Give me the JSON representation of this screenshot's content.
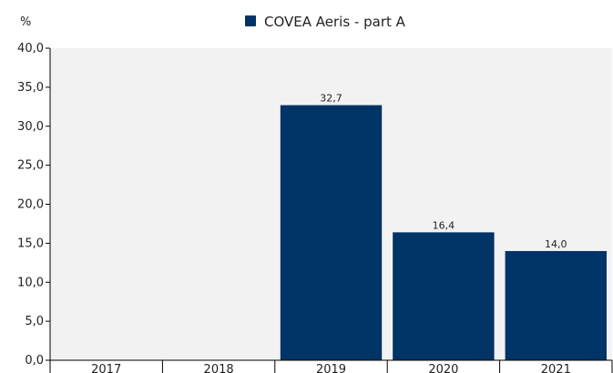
{
  "chart_data": {
    "type": "bar",
    "unit_label": "%",
    "categories": [
      "2017",
      "2018",
      "2019",
      "2020",
      "2021"
    ],
    "series": [
      {
        "name": "COVEA Aeris - part A",
        "values": [
          null,
          null,
          32.7,
          16.4,
          14.0
        ],
        "value_labels": [
          "",
          "",
          "32,7",
          "16,4",
          "14,0"
        ],
        "color": "#003366"
      }
    ],
    "ylim": [
      0,
      40
    ],
    "yticks": [
      0,
      5,
      10,
      15,
      20,
      25,
      30,
      35,
      40
    ],
    "ytick_labels": [
      "0,0",
      "5,0",
      "10,0",
      "15,0",
      "20,0",
      "25,0",
      "30,0",
      "35,0",
      "40,0"
    ],
    "grid": false,
    "legend_position": "top-center",
    "plot_background": "#f2f2f2"
  }
}
